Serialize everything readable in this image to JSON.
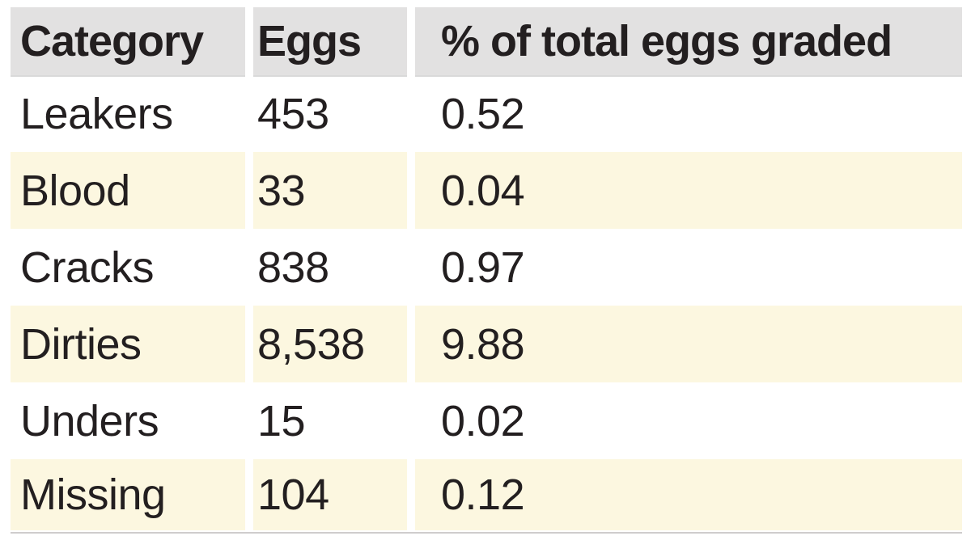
{
  "table": {
    "columns": [
      {
        "label": "Category"
      },
      {
        "label": "Eggs"
      },
      {
        "label": "% of total eggs graded"
      }
    ],
    "rows": [
      {
        "category": "Leakers",
        "eggs": "453",
        "pct": "0.52"
      },
      {
        "category": "Blood",
        "eggs": "33",
        "pct": "0.04"
      },
      {
        "category": "Cracks",
        "eggs": "838",
        "pct": "0.97"
      },
      {
        "category": "Dirties",
        "eggs": "8,538",
        "pct": "9.88"
      },
      {
        "category": "Unders",
        "eggs": "15",
        "pct": "0.02"
      },
      {
        "category": "Missing",
        "eggs": "104",
        "pct": "0.12"
      }
    ]
  },
  "colors": {
    "header_bg": "#e2e1e1",
    "row_alt_bg": "#fcf7e0",
    "text": "#231f20",
    "page_bg": "#ffffff"
  },
  "chart_data": {
    "type": "table",
    "title": "",
    "categories": [
      "Leakers",
      "Blood",
      "Cracks",
      "Dirties",
      "Unders",
      "Missing"
    ],
    "series": [
      {
        "name": "Eggs",
        "values": [
          453,
          33,
          838,
          8538,
          15,
          104
        ]
      },
      {
        "name": "% of total eggs graded",
        "values": [
          0.52,
          0.04,
          0.97,
          9.88,
          0.02,
          0.12
        ]
      }
    ]
  }
}
